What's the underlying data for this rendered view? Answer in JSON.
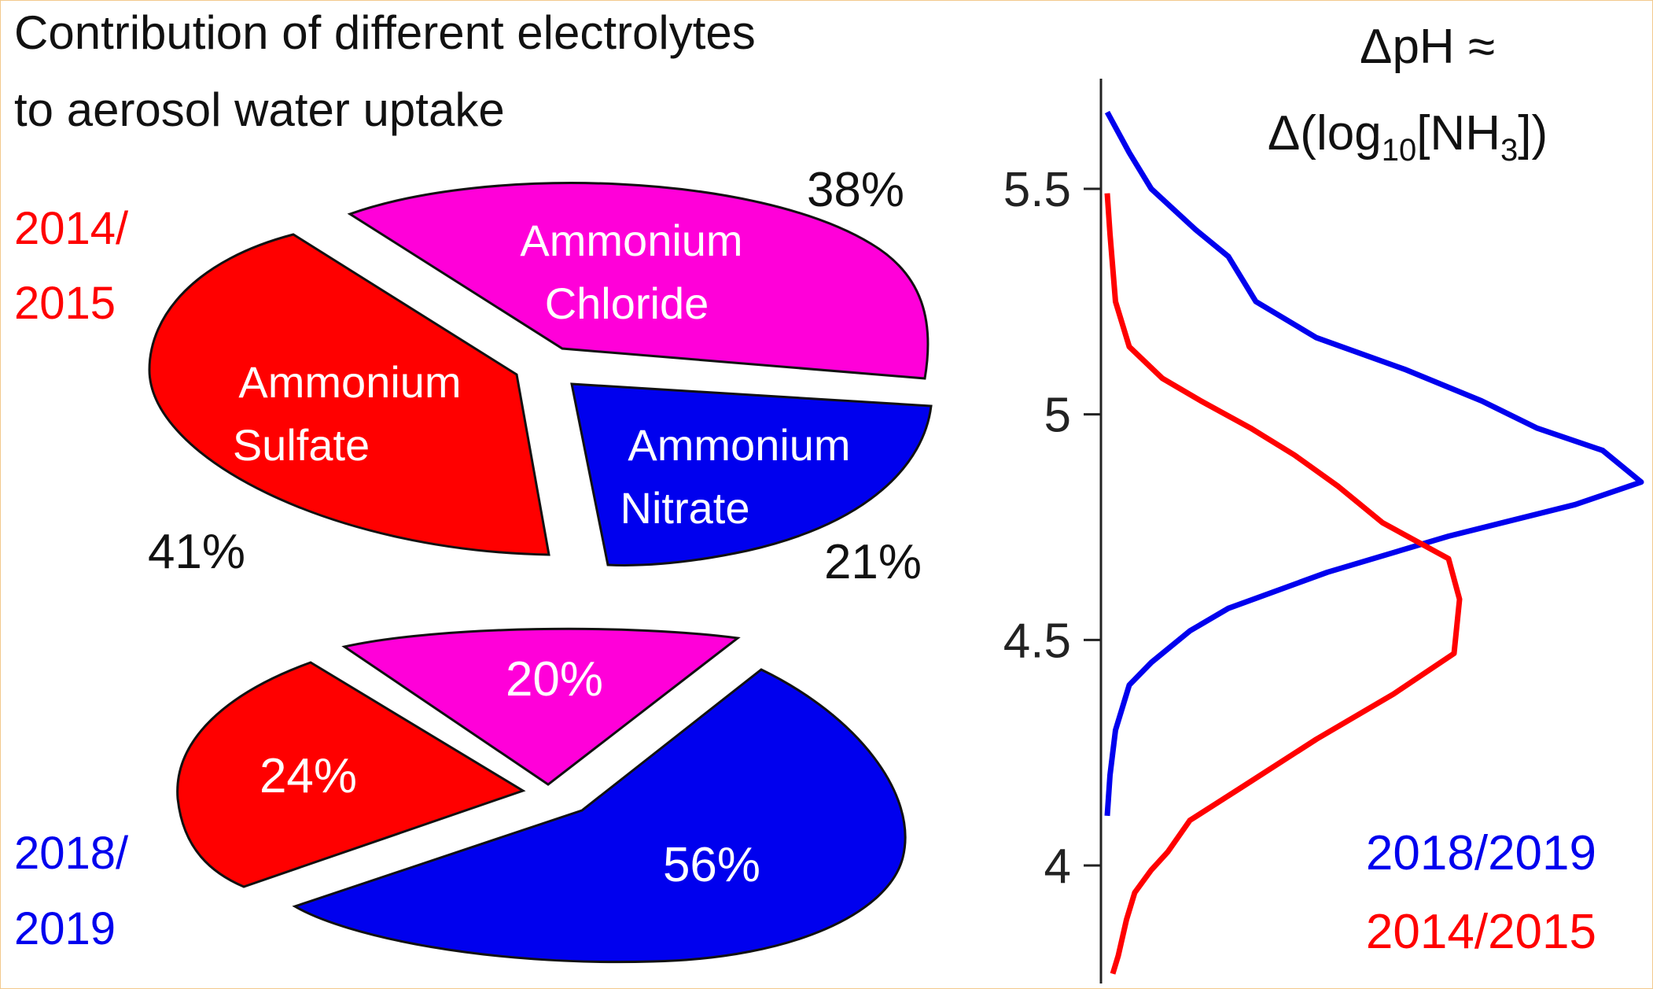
{
  "chart_data": [
    {
      "type": "pie",
      "title": "Contribution of different electrolytes",
      "subtitle": "to aerosol water uptake",
      "period_label": [
        "2014/",
        "2015"
      ],
      "period_color": "#ff0000",
      "slices": [
        {
          "label": [
            "Ammonium",
            "Chloride"
          ],
          "value": 38,
          "value_text": "38%",
          "color": "#ff00d9"
        },
        {
          "label": [
            "Ammonium",
            "Nitrate"
          ],
          "value": 21,
          "value_text": "21%",
          "color": "#0000ee"
        },
        {
          "label": [
            "Ammonium",
            "Sulfate"
          ],
          "value": 41,
          "value_text": "41%",
          "color": "#ff0000"
        }
      ]
    },
    {
      "type": "pie",
      "period_label": [
        "2018/",
        "2019"
      ],
      "period_color": "#0000ee",
      "slices": [
        {
          "value": 20,
          "value_text": "20%",
          "color": "#ff00d9"
        },
        {
          "value": 56,
          "value_text": "56%",
          "color": "#0000ee"
        },
        {
          "value": 24,
          "value_text": "24%",
          "color": "#ff0000"
        }
      ]
    },
    {
      "type": "line",
      "title_line1": "ΔpH ≈",
      "title_line2_prefix": "Δ(log",
      "title_line2_sub": "10",
      "title_line2_mid": "[NH",
      "title_line2_sub2": "3",
      "title_line2_suffix": "])",
      "ylim": [
        3.75,
        5.72
      ],
      "yticks": [
        4,
        4.5,
        5,
        5.5
      ],
      "ytick_labels": [
        "4",
        "4.5",
        "5",
        "5.5"
      ],
      "series": [
        {
          "name": "2018/2019",
          "color": "#0000ee",
          "points": [
            [
              0.0,
              5.67
            ],
            [
              0.04,
              5.58
            ],
            [
              0.08,
              5.5
            ],
            [
              0.16,
              5.41
            ],
            [
              0.22,
              5.35
            ],
            [
              0.27,
              5.25
            ],
            [
              0.38,
              5.17
            ],
            [
              0.54,
              5.1
            ],
            [
              0.68,
              5.03
            ],
            [
              0.78,
              4.97
            ],
            [
              0.9,
              4.92
            ],
            [
              0.97,
              4.85
            ],
            [
              0.85,
              4.8
            ],
            [
              0.62,
              4.73
            ],
            [
              0.4,
              4.65
            ],
            [
              0.22,
              4.57
            ],
            [
              0.15,
              4.52
            ],
            [
              0.08,
              4.45
            ],
            [
              0.04,
              4.4
            ],
            [
              0.015,
              4.3
            ],
            [
              0.005,
              4.2
            ],
            [
              0.0,
              4.11
            ]
          ]
        },
        {
          "name": "2014/2015",
          "color": "#ff0000",
          "points": [
            [
              0.0,
              5.49
            ],
            [
              0.005,
              5.4
            ],
            [
              0.015,
              5.25
            ],
            [
              0.04,
              5.15
            ],
            [
              0.1,
              5.08
            ],
            [
              0.17,
              5.03
            ],
            [
              0.26,
              4.97
            ],
            [
              0.34,
              4.91
            ],
            [
              0.42,
              4.84
            ],
            [
              0.5,
              4.76
            ],
            [
              0.62,
              4.68
            ],
            [
              0.64,
              4.59
            ],
            [
              0.63,
              4.47
            ],
            [
              0.52,
              4.38
            ],
            [
              0.38,
              4.28
            ],
            [
              0.24,
              4.17
            ],
            [
              0.15,
              4.1
            ],
            [
              0.11,
              4.03
            ],
            [
              0.08,
              3.99
            ],
            [
              0.05,
              3.94
            ],
            [
              0.035,
              3.88
            ],
            [
              0.02,
              3.8
            ],
            [
              0.01,
              3.76
            ]
          ]
        }
      ],
      "legend": [
        "2018/2019",
        "2014/2015"
      ],
      "legend_position": "bottom-right"
    }
  ]
}
